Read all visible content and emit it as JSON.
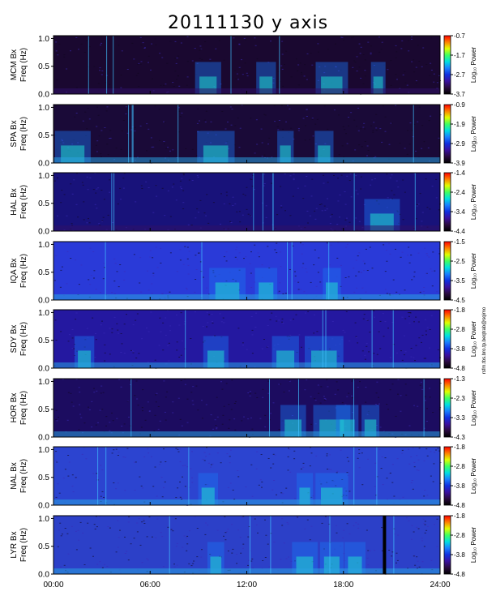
{
  "title": "20111130 y axis",
  "side_note": "rsfm.tbs.bro.tp.beqtrab@sqimo",
  "colors": {
    "background": "#ffffff",
    "spectrogram_scale": [
      "#000000",
      "#2a0a40",
      "#3a10a0",
      "#1030e0",
      "#1a80ff",
      "#00e0e0",
      "#40ff60",
      "#e0ff00",
      "#ff8000",
      "#ff0000"
    ]
  },
  "chart_data": [
    {
      "type": "heatmap",
      "station": "MCM",
      "ylabel": "MCM Bx\nFreq (Hz)",
      "yticks": [
        "0.0",
        "0.5",
        "1.0"
      ],
      "ylim": [
        0,
        1.05
      ],
      "colorbar": {
        "label": "Log₁₀ Power",
        "ticks": [
          "-0.7",
          "-1.7",
          "-2.7",
          "-3.7"
        ],
        "range": [
          -3.7,
          -0.7
        ]
      }
    },
    {
      "type": "heatmap",
      "station": "SPA",
      "ylabel": "SPA Bx\nFreq (Hz)",
      "yticks": [
        "0.0",
        "0.5",
        "1.0"
      ],
      "ylim": [
        0,
        1.05
      ],
      "colorbar": {
        "label": "Log₁₀ Power",
        "ticks": [
          "-0.9",
          "-1.9",
          "-2.9",
          "-3.9"
        ],
        "range": [
          -3.9,
          -0.9
        ]
      }
    },
    {
      "type": "heatmap",
      "station": "HAL",
      "ylabel": "HAL Bx\nFreq (Hz)",
      "yticks": [
        "0.0",
        "0.5",
        "1.0"
      ],
      "ylim": [
        0,
        1.05
      ],
      "colorbar": {
        "label": "Log₁₀ Power",
        "ticks": [
          "-1.4",
          "-2.4",
          "-3.4",
          "-4.4"
        ],
        "range": [
          -4.4,
          -1.4
        ]
      }
    },
    {
      "type": "heatmap",
      "station": "IQA",
      "ylabel": "IQA Bx\nFreq (Hz)",
      "yticks": [
        "0.0",
        "0.5",
        "1.0"
      ],
      "ylim": [
        0,
        1.05
      ],
      "colorbar": {
        "label": "Log₁₀ Power",
        "ticks": [
          "-1.5",
          "-2.5",
          "-3.5",
          "-4.5"
        ],
        "range": [
          -4.5,
          -1.5
        ]
      }
    },
    {
      "type": "heatmap",
      "station": "SDY",
      "ylabel": "SDY Bx\nFreq (Hz)",
      "yticks": [
        "0.0",
        "0.5",
        "1.0"
      ],
      "ylim": [
        0,
        1.05
      ],
      "colorbar": {
        "label": "Log₁₀ Power",
        "ticks": [
          "-1.8",
          "-2.8",
          "-3.8",
          "-4.8"
        ],
        "range": [
          -4.8,
          -1.8
        ]
      }
    },
    {
      "type": "heatmap",
      "station": "HOR",
      "ylabel": "HOR Bx\nFreq (Hz)",
      "yticks": [
        "0.0",
        "0.5",
        "1.0"
      ],
      "ylim": [
        0,
        1.05
      ],
      "colorbar": {
        "label": "Log₁₀ Power",
        "ticks": [
          "-1.3",
          "-2.3",
          "-3.3",
          "-4.3"
        ],
        "range": [
          -4.3,
          -1.3
        ]
      }
    },
    {
      "type": "heatmap",
      "station": "NAL",
      "ylabel": "NAL Bx\nFreq (Hz)",
      "yticks": [
        "0.0",
        "0.5",
        "1.0"
      ],
      "ylim": [
        0,
        1.05
      ],
      "colorbar": {
        "label": "Log₁₀ Power",
        "ticks": [
          "-1.8",
          "-2.8",
          "-3.8",
          "-4.8"
        ],
        "range": [
          -4.8,
          -1.8
        ]
      }
    },
    {
      "type": "heatmap",
      "station": "LYR",
      "ylabel": "LYR Bx\nFreq (Hz)",
      "yticks": [
        "0.0",
        "0.5",
        "1.0"
      ],
      "ylim": [
        0,
        1.05
      ],
      "colorbar": {
        "label": "Log₁₀ Power",
        "ticks": [
          "-1.8",
          "-2.8",
          "-3.8",
          "-4.8"
        ],
        "range": [
          -4.8,
          -1.8
        ]
      }
    }
  ],
  "x_axis": {
    "ticks": [
      "00:00",
      "06:00",
      "12:00",
      "18:00",
      "24:00"
    ],
    "range_hours": [
      0,
      24
    ]
  }
}
